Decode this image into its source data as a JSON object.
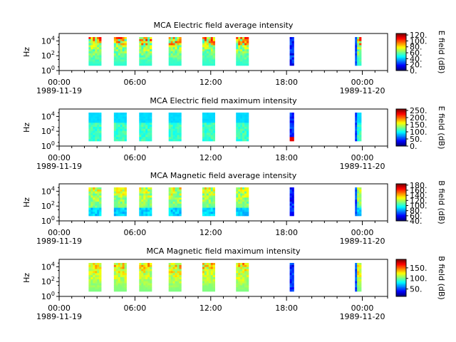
{
  "figure": {
    "x_tick_labels": [
      "00:00",
      "06:00",
      "12:00",
      "18:00",
      "00:00"
    ],
    "x_date_labels": [
      "1989-11-19",
      "1989-11-20"
    ]
  },
  "chart_data": [
    {
      "type": "heatmap",
      "title": "MCA  Electric field average intensity",
      "ylabel": "Hz",
      "y_tick_labels": [
        "10^0",
        "10^2",
        "10^4"
      ],
      "colorbar_label": "E field (dB)",
      "colorbar_ticks": [
        "0.",
        "20.",
        "40.",
        "60.",
        "80.",
        "100.",
        "120."
      ],
      "colorbar_range": [
        0,
        125
      ],
      "x_range": [
        "1989-11-19 00:00",
        "1989-11-20 02:00"
      ],
      "y_range_hz": [
        1,
        100000
      ],
      "y_scale": "log",
      "segments": [
        {
          "start": "02:20",
          "end": "03:20"
        },
        {
          "start": "04:20",
          "end": "05:20"
        },
        {
          "start": "06:20",
          "end": "07:20"
        },
        {
          "start": "08:40",
          "end": "09:40"
        },
        {
          "start": "11:20",
          "end": "12:20"
        },
        {
          "start": "14:00",
          "end": "15:00"
        },
        {
          "start": "18:15",
          "end": "18:35"
        },
        {
          "start": "23:25",
          "end": "23:55"
        }
      ]
    },
    {
      "type": "heatmap",
      "title": "MCA  Electric field maximum intensity",
      "ylabel": "Hz",
      "y_tick_labels": [
        "10^0",
        "10^2",
        "10^4"
      ],
      "colorbar_label": "E field (dB)",
      "colorbar_ticks": [
        "0.",
        "50.",
        "100.",
        "150.",
        "200.",
        "250."
      ],
      "colorbar_range": [
        0,
        260
      ],
      "x_range": [
        "1989-11-19 00:00",
        "1989-11-20 02:00"
      ],
      "y_range_hz": [
        1,
        100000
      ],
      "y_scale": "log"
    },
    {
      "type": "heatmap",
      "title": "MCA  Magnetic field average intensity",
      "ylabel": "Hz",
      "y_tick_labels": [
        "10^0",
        "10^2",
        "10^4"
      ],
      "colorbar_label": "B field (dB)",
      "colorbar_ticks": [
        "40.",
        "60.",
        "80.",
        "100.",
        "120.",
        "140.",
        "160.",
        "180."
      ],
      "colorbar_range": [
        40,
        185
      ],
      "x_range": [
        "1989-11-19 00:00",
        "1989-11-20 02:00"
      ],
      "y_range_hz": [
        1,
        100000
      ],
      "y_scale": "log"
    },
    {
      "type": "heatmap",
      "title": "MCA  Magnetic field maximum intensity",
      "ylabel": "Hz",
      "y_tick_labels": [
        "10^0",
        "10^2",
        "10^4"
      ],
      "colorbar_label": "B field (dB)",
      "colorbar_ticks": [
        "50.",
        "100.",
        "150."
      ],
      "colorbar_range": [
        15,
        190
      ],
      "x_range": [
        "1989-11-19 00:00",
        "1989-11-20 02:00"
      ],
      "y_range_hz": [
        1,
        100000
      ],
      "y_scale": "log"
    }
  ]
}
